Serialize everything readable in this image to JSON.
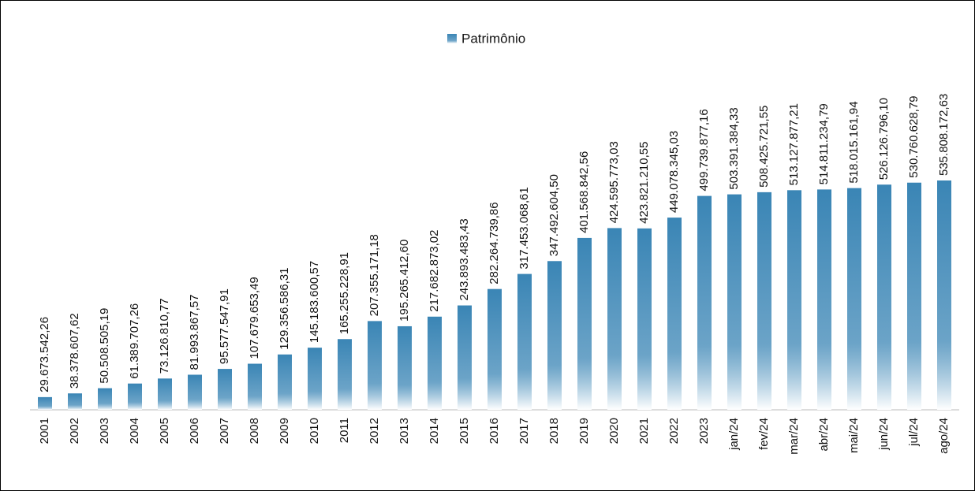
{
  "chart_data": {
    "type": "bar",
    "legend": "Patrimônio",
    "color": "#3a85b5",
    "categories": [
      "2001",
      "2002",
      "2003",
      "2004",
      "2005",
      "2006",
      "2007",
      "2008",
      "2009",
      "2010",
      "2011",
      "2012",
      "2013",
      "2014",
      "2015",
      "2016",
      "2017",
      "2018",
      "2019",
      "2020",
      "2021",
      "2022",
      "2023",
      "jan/24",
      "fev/24",
      "mar/24",
      "abr/24",
      "mai/24",
      "jun/24",
      "jul/24",
      "ago/24"
    ],
    "values": [
      29673542.26,
      38378607.62,
      50508505.19,
      61389707.26,
      73126810.77,
      81993867.57,
      95577547.91,
      107679653.49,
      129356586.31,
      145183600.57,
      165255228.91,
      207355171.18,
      195265412.6,
      217682873.02,
      243893483.43,
      282264739.86,
      317453068.61,
      347492604.5,
      401568842.56,
      424595773.03,
      423821210.55,
      449078345.03,
      499739877.16,
      503391384.33,
      508425721.55,
      513127877.21,
      514811234.79,
      518015161.94,
      526126796.1,
      530760628.79,
      535808172.63
    ],
    "value_labels": [
      "29.673.542,26",
      "38.378.607,62",
      "50.508.505,19",
      "61.389.707,26",
      "73.126.810,77",
      "81.993.867,57",
      "95.577.547,91",
      "107.679.653,49",
      "129.356.586,31",
      "145.183.600,57",
      "165.255.228,91",
      "207.355.171,18",
      "195.265.412,60",
      "217.682.873,02",
      "243.893.483,43",
      "282.264.739,86",
      "317.453.068,61",
      "347.492.604,50",
      "401.568.842,56",
      "424.595.773,03",
      "423.821.210,55",
      "449.078.345,03",
      "499.739.877,16",
      "503.391.384,33",
      "508.425.721,55",
      "513.127.877,21",
      "514.811.234,79",
      "518.015.161,94",
      "526.126.796,10",
      "530.760.628,79",
      "535.808.172,63"
    ]
  }
}
